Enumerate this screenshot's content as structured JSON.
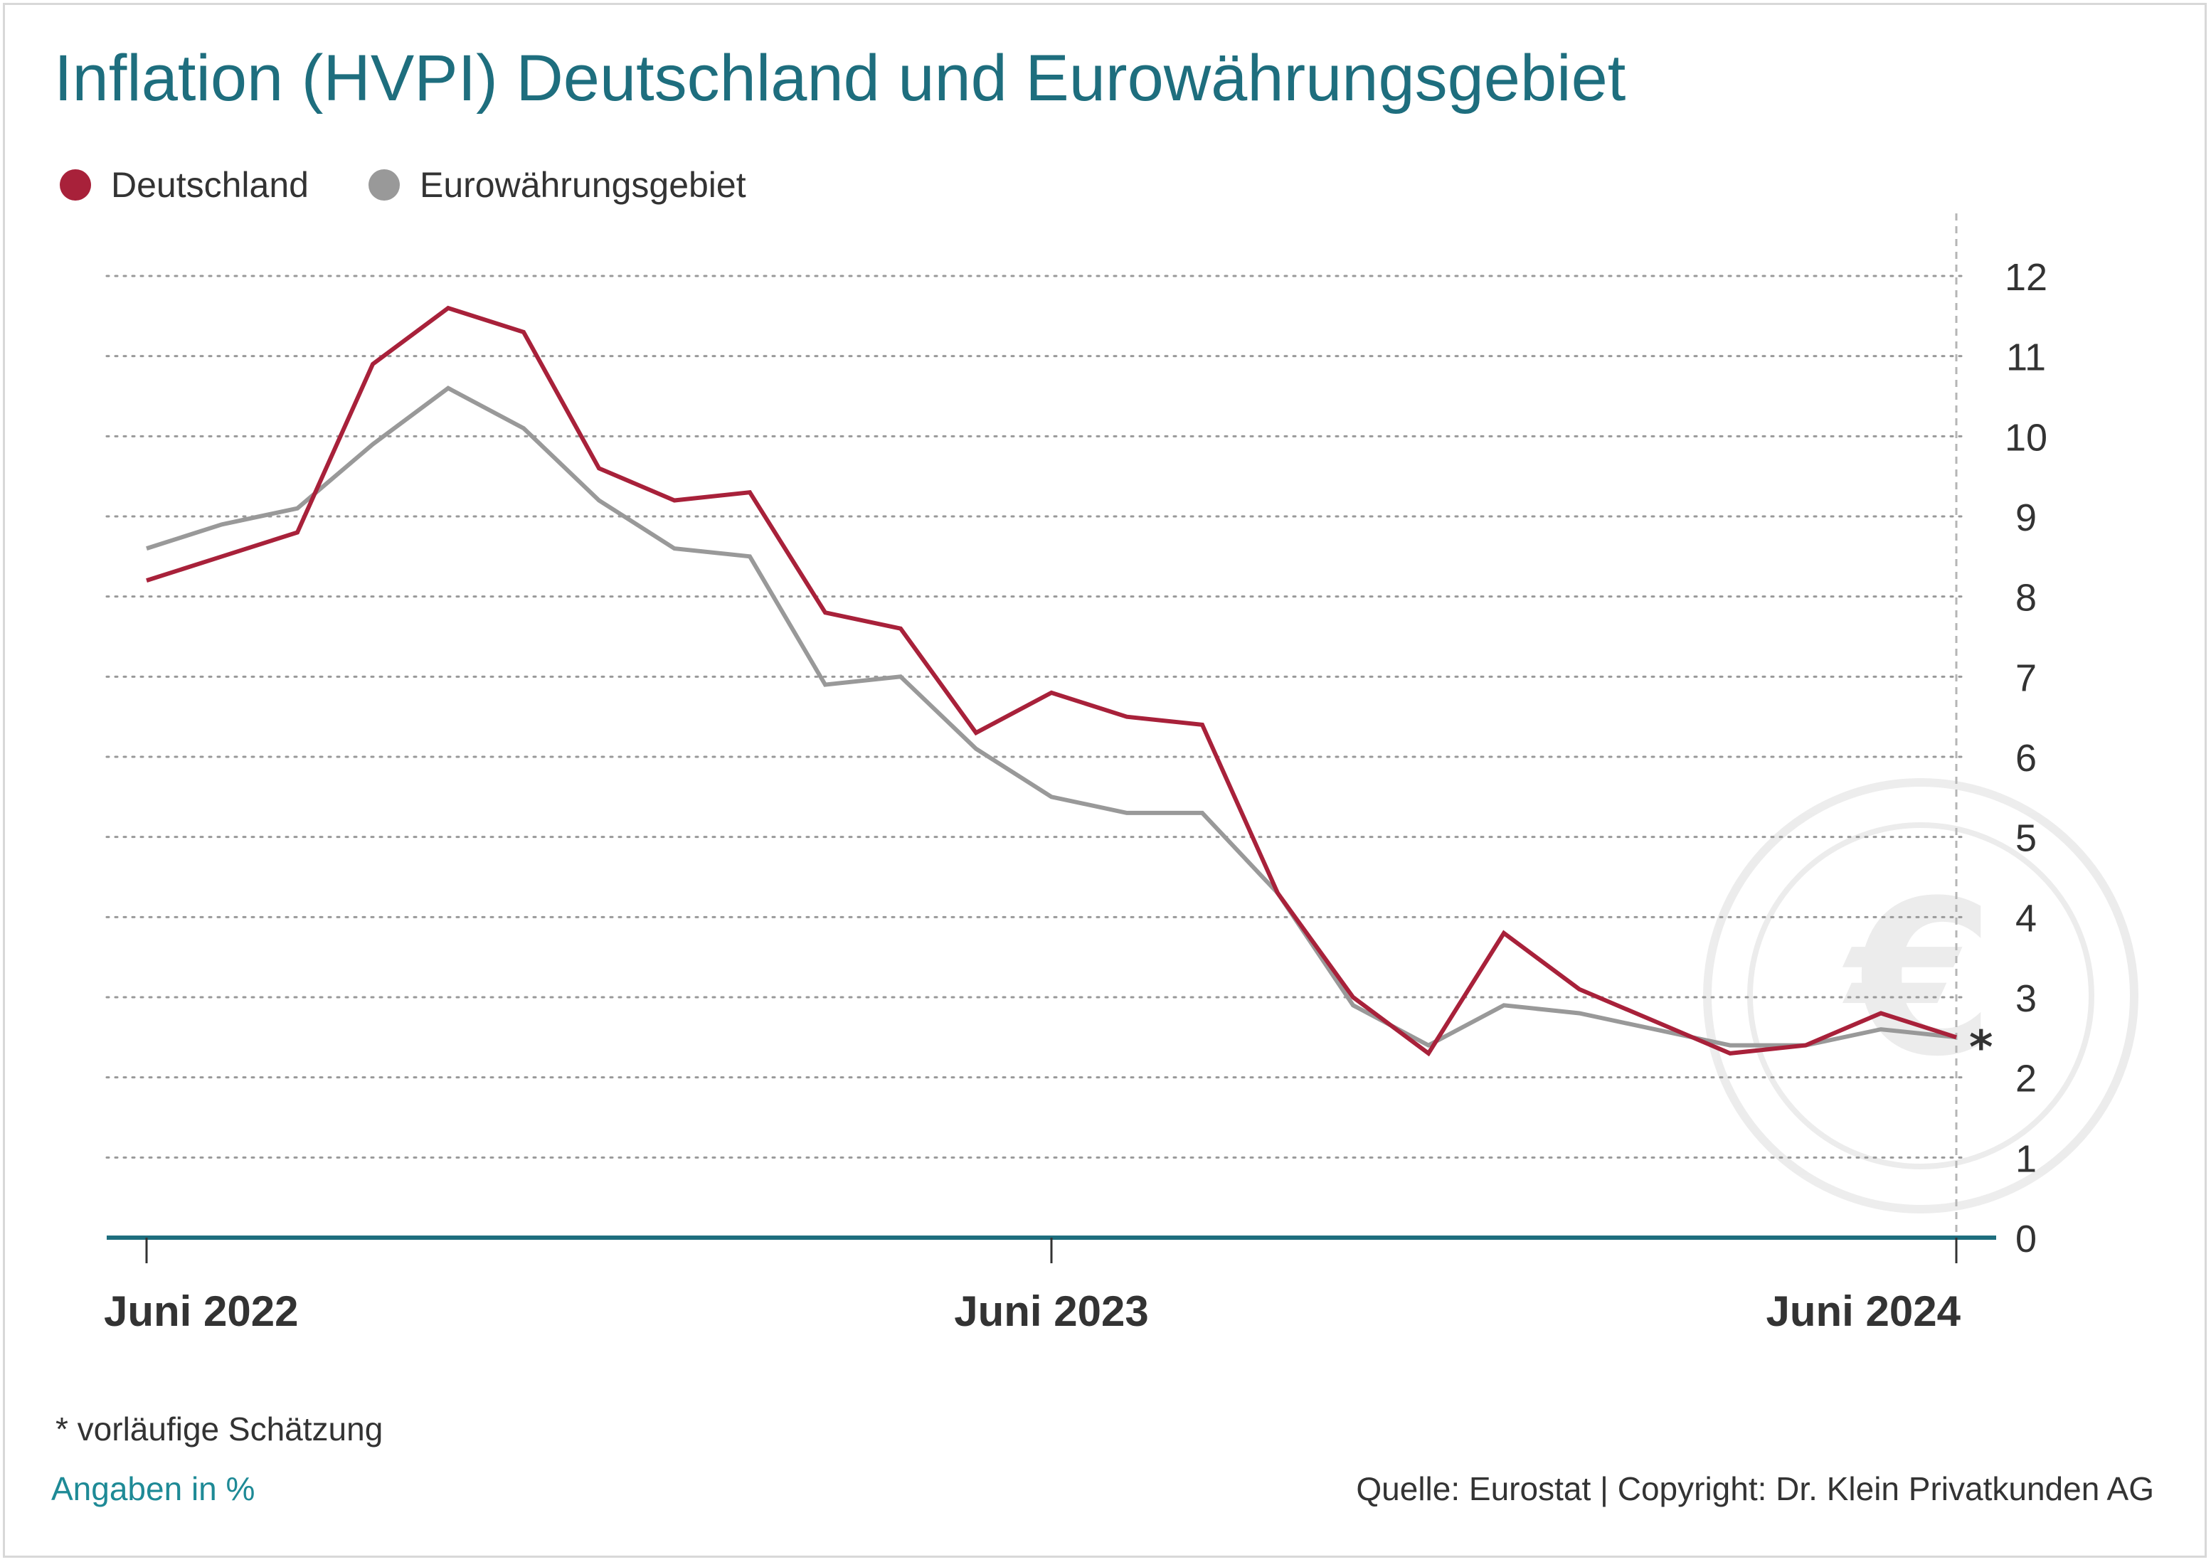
{
  "title": "Inflation (HVPI) Deutschland und Eurowährungsgebiet",
  "legend": [
    {
      "label": "Deutschland",
      "color": "#a8213a"
    },
    {
      "label": "Eurowährungsgebiet",
      "color": "#999999"
    }
  ],
  "footnote": "*  vorläufige Schätzung",
  "unit_note": "Angaben in %",
  "source": "Quelle: Eurostat | Copyright: Dr. Klein Privatkunden AG",
  "colors": {
    "title": "#1e6e7e",
    "axis": "#1e6e7e",
    "germany": "#a8213a",
    "euro": "#999999",
    "grid": "#999999"
  },
  "icons": {
    "watermark": "euro-icon"
  },
  "chart_data": {
    "type": "line",
    "x": [
      "2022-06",
      "2022-07",
      "2022-08",
      "2022-09",
      "2022-10",
      "2022-11",
      "2022-12",
      "2023-01",
      "2023-02",
      "2023-03",
      "2023-04",
      "2023-05",
      "2023-06",
      "2023-07",
      "2023-08",
      "2023-09",
      "2023-10",
      "2023-11",
      "2023-12",
      "2024-01",
      "2024-02",
      "2024-03",
      "2024-04",
      "2024-05",
      "2024-06"
    ],
    "x_tick_labels": [
      {
        "label": "Juni 2022",
        "x": "2022-06"
      },
      {
        "label": "Juni 2023",
        "x": "2023-06"
      },
      {
        "label": "Juni 2024",
        "x": "2024-06"
      }
    ],
    "series": [
      {
        "name": "Deutschland",
        "color": "#a8213a",
        "values": [
          8.2,
          8.5,
          8.8,
          10.9,
          11.6,
          11.3,
          9.6,
          9.2,
          9.3,
          7.8,
          7.6,
          6.3,
          6.8,
          6.5,
          6.4,
          4.3,
          3.0,
          2.3,
          3.8,
          3.1,
          2.7,
          2.3,
          2.4,
          2.8,
          2.5
        ]
      },
      {
        "name": "Eurowährungsgebiet",
        "color": "#999999",
        "values": [
          8.6,
          8.9,
          9.1,
          9.9,
          10.6,
          10.1,
          9.2,
          8.6,
          8.5,
          6.9,
          7.0,
          6.1,
          5.5,
          5.3,
          5.3,
          4.3,
          2.9,
          2.4,
          2.9,
          2.8,
          2.6,
          2.4,
          2.4,
          2.6,
          2.5
        ]
      }
    ],
    "yticks": [
      0,
      1,
      2,
      3,
      4,
      5,
      6,
      7,
      8,
      9,
      10,
      11,
      12
    ],
    "ylim": [
      0,
      12
    ],
    "y_axis_position": "right",
    "grid": "horizontal dotted",
    "legend_position": "top-left",
    "annotation": {
      "text": "*",
      "x": "2024-06"
    },
    "xlabel": "",
    "ylabel": ""
  }
}
